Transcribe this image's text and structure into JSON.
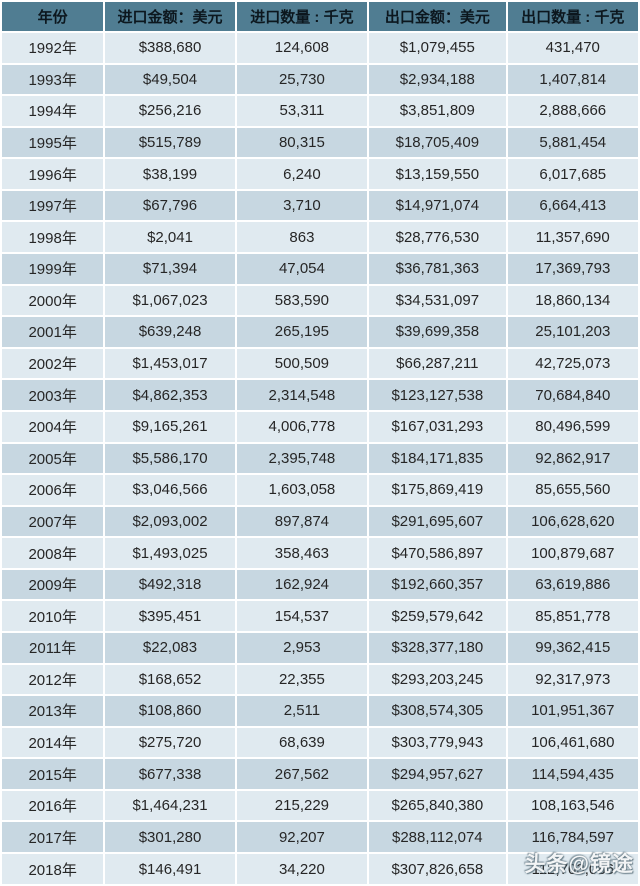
{
  "chart_data": {
    "type": "table",
    "title": "",
    "columns": [
      "年份",
      "进口金额：美元",
      "进口数量 : 千克",
      "出口金额：美元",
      "出口数量 : 千克"
    ],
    "rows": [
      [
        "1992年",
        "$388,680",
        "124,608",
        "$1,079,455",
        "431,470"
      ],
      [
        "1993年",
        "$49,504",
        "25,730",
        "$2,934,188",
        "1,407,814"
      ],
      [
        "1994年",
        "$256,216",
        "53,311",
        "$3,851,809",
        "2,888,666"
      ],
      [
        "1995年",
        "$515,789",
        "80,315",
        "$18,705,409",
        "5,881,454"
      ],
      [
        "1996年",
        "$38,199",
        "6,240",
        "$13,159,550",
        "6,017,685"
      ],
      [
        "1997年",
        "$67,796",
        "3,710",
        "$14,971,074",
        "6,664,413"
      ],
      [
        "1998年",
        "$2,041",
        "863",
        "$28,776,530",
        "11,357,690"
      ],
      [
        "1999年",
        "$71,394",
        "47,054",
        "$36,781,363",
        "17,369,793"
      ],
      [
        "2000年",
        "$1,067,023",
        "583,590",
        "$34,531,097",
        "18,860,134"
      ],
      [
        "2001年",
        "$639,248",
        "265,195",
        "$39,699,358",
        "25,101,203"
      ],
      [
        "2002年",
        "$1,453,017",
        "500,509",
        "$66,287,211",
        "42,725,073"
      ],
      [
        "2003年",
        "$4,862,353",
        "2,314,548",
        "$123,127,538",
        "70,684,840"
      ],
      [
        "2004年",
        "$9,165,261",
        "4,006,778",
        "$167,031,293",
        "80,496,599"
      ],
      [
        "2005年",
        "$5,586,170",
        "2,395,748",
        "$184,171,835",
        "92,862,917"
      ],
      [
        "2006年",
        "$3,046,566",
        "1,603,058",
        "$175,869,419",
        "85,655,560"
      ],
      [
        "2007年",
        "$2,093,002",
        "897,874",
        "$291,695,607",
        "106,628,620"
      ],
      [
        "2008年",
        "$1,493,025",
        "358,463",
        "$470,586,897",
        "100,879,687"
      ],
      [
        "2009年",
        "$492,318",
        "162,924",
        "$192,660,357",
        "63,619,886"
      ],
      [
        "2010年",
        "$395,451",
        "154,537",
        "$259,579,642",
        "85,851,778"
      ],
      [
        "2011年",
        "$22,083",
        "2,953",
        "$328,377,180",
        "99,362,415"
      ],
      [
        "2012年",
        "$168,652",
        "22,355",
        "$293,203,245",
        "92,317,973"
      ],
      [
        "2013年",
        "$108,860",
        "2,511",
        "$308,574,305",
        "101,951,367"
      ],
      [
        "2014年",
        "$275,720",
        "68,639",
        "$303,779,943",
        "106,461,680"
      ],
      [
        "2015年",
        "$677,338",
        "267,562",
        "$294,957,627",
        "114,594,435"
      ],
      [
        "2016年",
        "$1,464,231",
        "215,229",
        "$265,840,380",
        "108,163,546"
      ],
      [
        "2017年",
        "$301,280",
        "92,207",
        "$288,112,074",
        "116,784,597"
      ],
      [
        "2018年",
        "$146,491",
        "34,220",
        "$307,826,658",
        "112,703,086"
      ]
    ]
  },
  "watermark": {
    "text": "头条@镜途"
  },
  "colors": {
    "header_bg": "#507d92",
    "header_text": "#0c171e",
    "row_light": "#e0eaf0",
    "row_dark": "#c7d7e1",
    "body_text": "#262626",
    "separator": "#ffffff"
  }
}
